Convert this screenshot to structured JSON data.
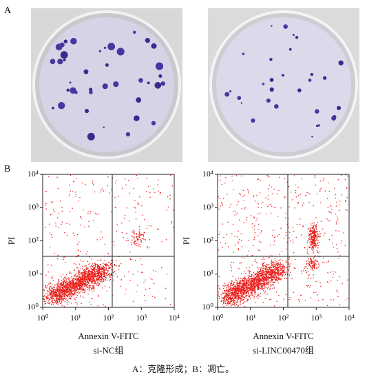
{
  "figure": {
    "panel_a": {
      "label": "A"
    },
    "panel_b": {
      "label": "B"
    },
    "plots": [
      {
        "y_label": "PI",
        "x_label": "Annexin V-FITC",
        "caption": "si-NC组",
        "xticks": [
          {
            "value": 0,
            "label": "10⁰"
          },
          {
            "value": 1,
            "label": "10¹"
          },
          {
            "value": 2,
            "label": "10²"
          },
          {
            "value": 3,
            "label": "10³"
          },
          {
            "value": 4,
            "label": "10⁴"
          }
        ],
        "yticks": [
          {
            "value": 0,
            "label": "10⁰"
          },
          {
            "value": 1,
            "label": "10¹"
          },
          {
            "value": 2,
            "label": "10²"
          },
          {
            "value": 3,
            "label": "10³"
          },
          {
            "value": 4,
            "label": "10⁴"
          }
        ]
      },
      {
        "y_label": "PI",
        "x_label": "Annexin V-FITC",
        "caption": "si-LINC00470组",
        "xticks": [
          {
            "value": 0,
            "label": "10⁰"
          },
          {
            "value": 1,
            "label": "10¹"
          },
          {
            "value": 2,
            "label": "10²"
          },
          {
            "value": 3,
            "label": "10³"
          },
          {
            "value": 4,
            "label": "10⁴"
          }
        ],
        "yticks": [
          {
            "value": 0,
            "label": "10⁰"
          },
          {
            "value": 1,
            "label": "10¹"
          },
          {
            "value": 2,
            "label": "10²"
          },
          {
            "value": 3,
            "label": "10³"
          },
          {
            "value": 4,
            "label": "10⁴"
          }
        ]
      }
    ],
    "caption": "A：克隆形成；B：凋亡。"
  }
}
